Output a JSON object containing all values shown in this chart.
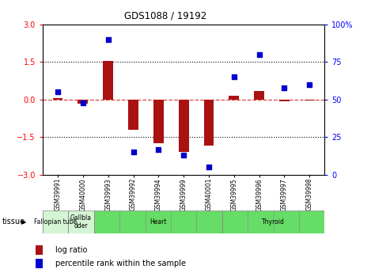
{
  "title": "GDS1088 / 19192",
  "samples": [
    "GSM39991",
    "GSM40000",
    "GSM39993",
    "GSM39992",
    "GSM39994",
    "GSM39999",
    "GSM40001",
    "GSM39995",
    "GSM39996",
    "GSM39997",
    "GSM39998"
  ],
  "log_ratio": [
    0.05,
    -0.15,
    1.55,
    -1.2,
    -1.75,
    -2.1,
    -1.85,
    0.15,
    0.35,
    -0.05,
    -0.03
  ],
  "percentile_rank": [
    55,
    48,
    90,
    15,
    17,
    13,
    5,
    65,
    80,
    58,
    60
  ],
  "tissues": [
    {
      "label": "Fallopian tube",
      "start": 0,
      "end": 1,
      "color": "#d4f5d4"
    },
    {
      "label": "Gallbla\ndder",
      "start": 1,
      "end": 2,
      "color": "#d4f5d4"
    },
    {
      "label": "Heart",
      "start": 2,
      "end": 7,
      "color": "#66dd66"
    },
    {
      "label": "Thyroid",
      "start": 7,
      "end": 11,
      "color": "#66dd66"
    }
  ],
  "ylim_left": [
    -3,
    3
  ],
  "ylim_right": [
    0,
    100
  ],
  "yticks_left": [
    -3,
    -1.5,
    0,
    1.5,
    3
  ],
  "yticks_right": [
    0,
    25,
    50,
    75,
    100
  ],
  "bar_color": "#aa1111",
  "dot_color": "#0000cc",
  "dashed_color": "#dd4444",
  "dotted_color": "#000000",
  "bg_color": "#ffffff"
}
